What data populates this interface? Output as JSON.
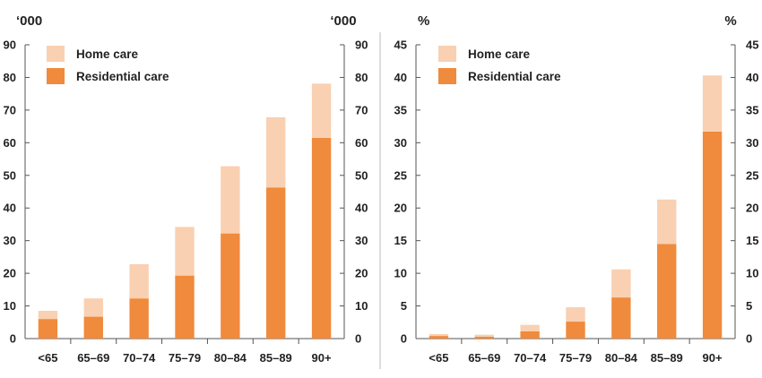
{
  "colors": {
    "home_care": "#f9d0b1",
    "residential_care": "#f08a3c",
    "axis": "#555555",
    "divider": "#bbbbbb"
  },
  "chart_data": [
    {
      "type": "bar",
      "stacked": true,
      "unit_left": "‘000",
      "unit_right": "‘000",
      "ylim": [
        0,
        90
      ],
      "yticks": [
        0,
        10,
        20,
        30,
        40,
        50,
        60,
        70,
        80,
        90
      ],
      "categories": [
        "<65",
        "65–69",
        "70–74",
        "75–79",
        "80–84",
        "85–89",
        "90+"
      ],
      "legend_position": "top-left",
      "series": [
        {
          "name": "Residential care",
          "color": "#f08a3c",
          "values": [
            6,
            6.7,
            12.3,
            19.3,
            32.2,
            46.3,
            61.5
          ]
        },
        {
          "name": "Home care",
          "color": "#f9d0b1",
          "values": [
            2.5,
            5.6,
            10.5,
            14.9,
            20.6,
            21.5,
            16.6
          ]
        }
      ]
    },
    {
      "type": "bar",
      "stacked": true,
      "unit_left": "%",
      "unit_right": "%",
      "ylim": [
        0,
        45
      ],
      "yticks": [
        0,
        5,
        10,
        15,
        20,
        25,
        30,
        35,
        40,
        45
      ],
      "categories": [
        "<65",
        "65–69",
        "70–74",
        "75–79",
        "80–84",
        "85–89",
        "90+"
      ],
      "legend_position": "top-left",
      "series": [
        {
          "name": "Residential care",
          "color": "#f08a3c",
          "values": [
            0.4,
            0.3,
            1.1,
            2.6,
            6.3,
            14.5,
            31.7
          ]
        },
        {
          "name": "Home care",
          "color": "#f9d0b1",
          "values": [
            0.3,
            0.3,
            1.0,
            2.2,
            4.3,
            6.8,
            8.6
          ]
        }
      ]
    }
  ]
}
